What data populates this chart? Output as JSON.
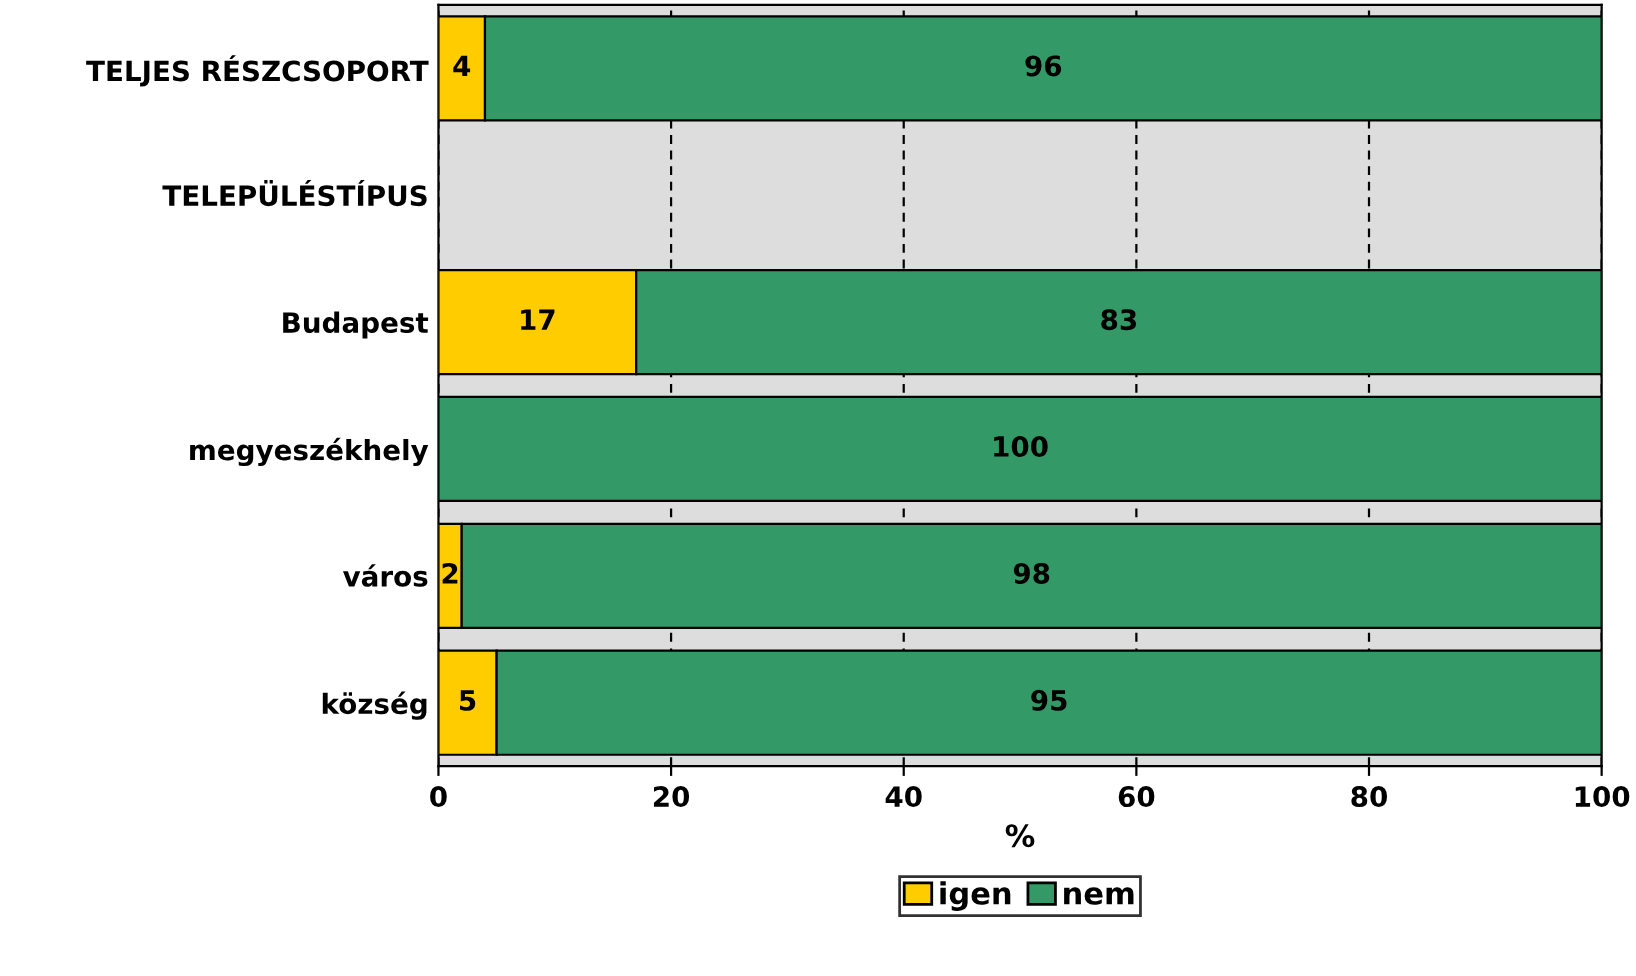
{
  "chart_data": {
    "type": "bar",
    "orientation": "horizontal",
    "stacked": true,
    "categories": [
      "TELJES RÉSZCSOPORT",
      "TELEPÜLÉSTÍPUS",
      "Budapest",
      "megyeszékhely",
      "város",
      "község"
    ],
    "series": [
      {
        "name": "igen",
        "color": "#ffcc00",
        "values": [
          4,
          null,
          17,
          null,
          2,
          5
        ]
      },
      {
        "name": "nem",
        "color": "#339966",
        "values": [
          96,
          null,
          83,
          100,
          98,
          95
        ]
      }
    ],
    "xlabel": "%",
    "xlim": [
      0,
      100
    ],
    "xticks": [
      0,
      20,
      40,
      60,
      80,
      100
    ],
    "grid": "x",
    "legend": "bottom",
    "data_labels": true
  }
}
